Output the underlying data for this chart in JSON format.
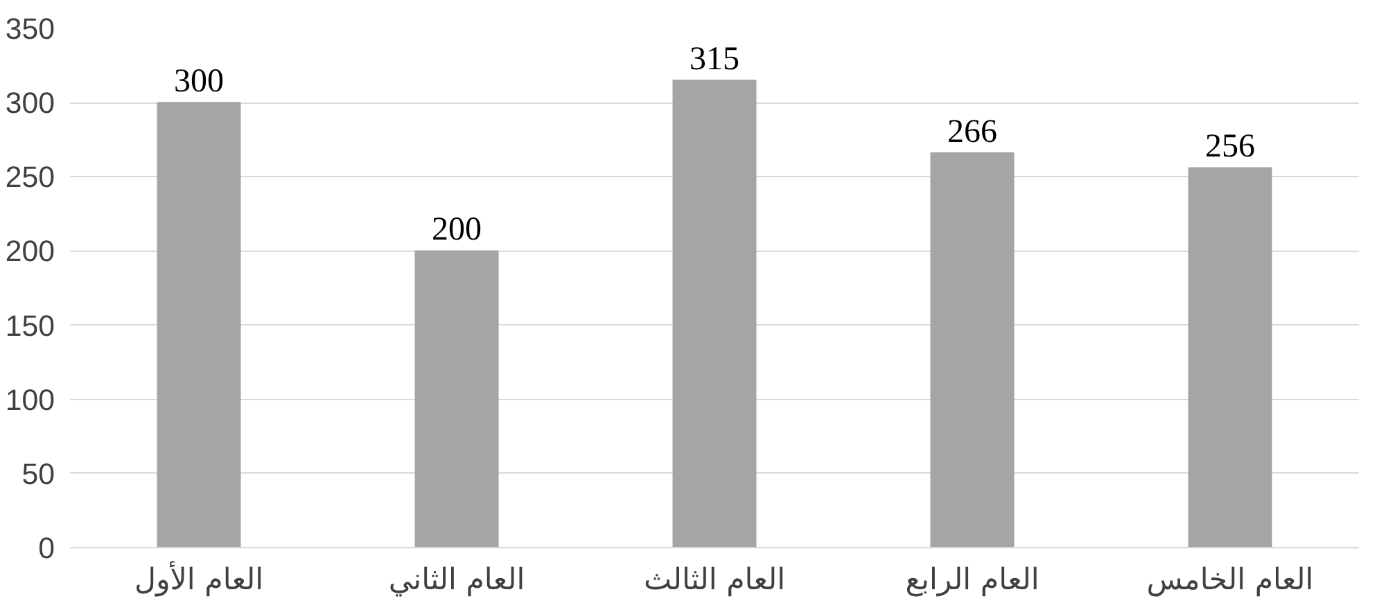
{
  "chart_data": {
    "type": "bar",
    "categories": [
      "العام الأول",
      "العام الثاني",
      "العام الثالث",
      "العام الرابع",
      "العام الخامس"
    ],
    "values": [
      300,
      200,
      315,
      266,
      256
    ],
    "color": "#a5a5a5",
    "ylim": [
      0,
      350
    ],
    "yticks": [
      0,
      50,
      100,
      150,
      200,
      250,
      300,
      350
    ],
    "grid": "y",
    "data_labels": true
  }
}
